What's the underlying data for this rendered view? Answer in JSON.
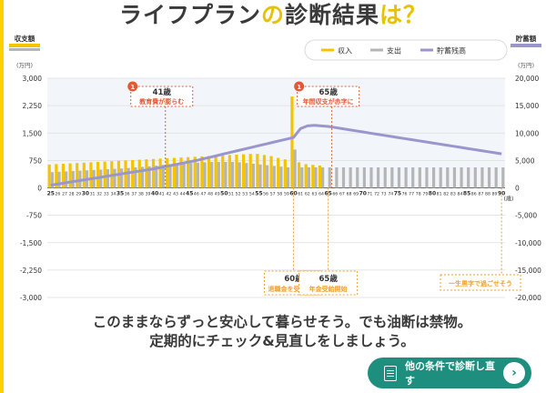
{
  "title": {
    "part1": "ライフプラン",
    "part2": "の",
    "part3": "診断結果",
    "part4": "は？"
  },
  "chart_data": {
    "type": "bar",
    "left_axis": {
      "label": "収支額",
      "unit": "(万円)",
      "min": -3000,
      "max": 3000,
      "ticks": [
        3000,
        2250,
        1500,
        750,
        0,
        -750,
        -1500,
        -2250,
        -3000
      ],
      "tick_labels": [
        "3,000",
        "2,250",
        "1,500",
        "750",
        "0",
        "-750",
        "-1,500",
        "-2,250",
        "-3,000"
      ]
    },
    "right_axis": {
      "label": "貯蓄額",
      "unit": "(万円)",
      "min": -20000,
      "max": 20000,
      "ticks": [
        20000,
        15000,
        10000,
        5000,
        0,
        -5000,
        -10000,
        -15000,
        -20000
      ],
      "tick_labels": [
        "20,000",
        "15,000",
        "10,000",
        "5,000",
        "0",
        "-5,000",
        "-10,000",
        "-15,000",
        "-20,000"
      ]
    },
    "x_unit": "(歳)",
    "ages": [
      25,
      26,
      27,
      28,
      29,
      30,
      31,
      32,
      33,
      34,
      35,
      36,
      37,
      38,
      39,
      40,
      41,
      42,
      43,
      44,
      45,
      46,
      47,
      48,
      49,
      50,
      51,
      52,
      53,
      54,
      55,
      56,
      57,
      58,
      59,
      60,
      61,
      62,
      63,
      64,
      65,
      66,
      67,
      68,
      69,
      70,
      71,
      72,
      73,
      74,
      75,
      76,
      77,
      78,
      79,
      80,
      81,
      82,
      83,
      84,
      85,
      86,
      87,
      88,
      89,
      90
    ],
    "legend": [
      "収入",
      "支出",
      "貯蓄残高"
    ],
    "colors": {
      "income": "#f5c400",
      "expense": "#b5b5b5",
      "savings": "#9a96cc",
      "annotation": "#e05a37",
      "callout": "#f0a030"
    },
    "series": [
      {
        "name": "収入",
        "values": [
          640,
          650,
          660,
          670,
          680,
          690,
          700,
          710,
          720,
          730,
          740,
          750,
          760,
          770,
          780,
          790,
          800,
          810,
          820,
          830,
          840,
          850,
          860,
          870,
          880,
          890,
          900,
          910,
          920,
          930,
          930,
          900,
          870,
          820,
          780,
          2500,
          700,
          650,
          630,
          610,
          0,
          0,
          0,
          0,
          0,
          0,
          0,
          0,
          0,
          0,
          0,
          0,
          0,
          0,
          0,
          0,
          0,
          0,
          0,
          0,
          0,
          0,
          0,
          0,
          0,
          0
        ]
      },
      {
        "name": "支出",
        "values": [
          430,
          440,
          450,
          460,
          470,
          480,
          490,
          500,
          510,
          520,
          530,
          545,
          560,
          575,
          590,
          610,
          630,
          650,
          660,
          670,
          680,
          690,
          700,
          710,
          710,
          710,
          710,
          700,
          680,
          660,
          640,
          620,
          600,
          580,
          560,
          1050,
          560,
          560,
          560,
          560,
          560,
          560,
          560,
          560,
          560,
          560,
          560,
          560,
          560,
          560,
          560,
          560,
          560,
          560,
          560,
          560,
          560,
          560,
          560,
          560,
          560,
          560,
          560,
          560,
          560,
          560
        ]
      },
      {
        "name": "貯蓄残高",
        "values": [
          500,
          700,
          900,
          1100,
          1300,
          1500,
          1700,
          1900,
          2100,
          2300,
          2500,
          2700,
          2900,
          3100,
          3300,
          3500,
          3750,
          4000,
          4250,
          4500,
          4750,
          5000,
          5300,
          5600,
          5900,
          6200,
          6500,
          6800,
          7100,
          7400,
          7700,
          8000,
          8300,
          8600,
          8900,
          9200,
          10800,
          11300,
          11400,
          11300,
          11200,
          11000,
          10800,
          10600,
          10400,
          10200,
          10000,
          9800,
          9600,
          9400,
          9200,
          9000,
          8800,
          8600,
          8400,
          8200,
          8000,
          7800,
          7600,
          7400,
          7200,
          7000,
          6800,
          6600,
          6400,
          6200
        ]
      }
    ],
    "annotations": [
      {
        "badge": "1",
        "age_text": "41歳",
        "label": "教育費が膨らむ",
        "age": 41
      },
      {
        "badge": "1",
        "age_text": "65歳",
        "label": "年間収支が赤字に",
        "age": 65
      }
    ],
    "callouts": [
      {
        "age_text": "60歳",
        "label": "退職金を受け取る",
        "age": 60
      },
      {
        "age_text": "65歳",
        "label": "年金受給開始",
        "age": 65
      },
      {
        "age_text": "",
        "label": "一生黒字で過ごせそう",
        "age": 90
      }
    ]
  },
  "message": {
    "line1": "このままならずっと安心して暮らせそう。でも油断は禁物。",
    "line2": "定期的にチェック&見直しをしましょう。"
  },
  "cta": {
    "label": "他の条件で診断し直す",
    "arrow": "›"
  }
}
